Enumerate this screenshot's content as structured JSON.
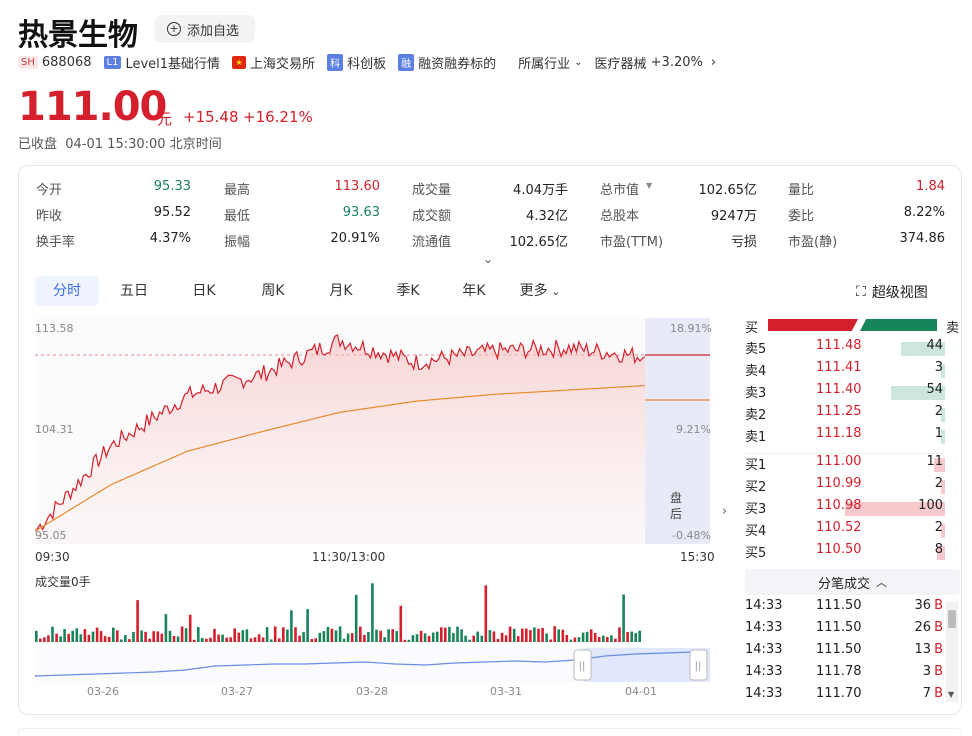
{
  "stock": {
    "name": "热景生物",
    "watch_label": "添加自选",
    "exchange_badge": "SH",
    "code": "688068",
    "level_badge": "L1",
    "level_label": "Level1基础行情",
    "exchange_label": "上海交易所",
    "star_badge": "科",
    "star_label": "科创板",
    "margin_badge": "融",
    "margin_label": "融资融券标的",
    "industry_label": "所属行业",
    "industry_name": "医疗器械",
    "industry_change": "+3.20%",
    "price": "111.00",
    "unit": "元",
    "change": "+15.48",
    "change_pct": "+16.21%",
    "status": "已收盘  04-01 15:30:00 北京时间"
  },
  "stats": [
    [
      {
        "label": "今开",
        "value": "95.33",
        "color": "green"
      },
      {
        "label": "最高",
        "value": "113.60",
        "color": "red"
      },
      {
        "label": "成交量",
        "value": "4.04万手",
        "color": ""
      },
      {
        "label": "总市值",
        "value": "102.65亿",
        "color": ""
      },
      {
        "label": "量比",
        "value": "1.84",
        "color": "red"
      }
    ],
    [
      {
        "label": "昨收",
        "value": "95.52",
        "color": ""
      },
      {
        "label": "最低",
        "value": "93.63",
        "color": "green"
      },
      {
        "label": "成交额",
        "value": "4.32亿",
        "color": ""
      },
      {
        "label": "总股本",
        "value": "9247万",
        "color": ""
      },
      {
        "label": "委比",
        "value": "8.22%",
        "color": ""
      }
    ],
    [
      {
        "label": "换手率",
        "value": "4.37%",
        "color": ""
      },
      {
        "label": "振幅",
        "value": "20.91%",
        "color": ""
      },
      {
        "label": "流通值",
        "value": "102.65亿",
        "color": ""
      },
      {
        "label": "市盈(TTM)",
        "value": "亏损",
        "color": ""
      },
      {
        "label": "市盈(静)",
        "value": "374.86",
        "color": ""
      }
    ]
  ],
  "tabs": [
    "分时",
    "五日",
    "日K",
    "周K",
    "月K",
    "季K",
    "年K",
    "更多"
  ],
  "super_view": "超级视图",
  "chart": {
    "y_left": [
      "113.58",
      "104.31",
      "95.05"
    ],
    "y_right": [
      "18.91%",
      "9.21%",
      "-0.48%"
    ],
    "x_labels": [
      "09:30",
      "11:30/13:00",
      "15:30"
    ],
    "after_hours": "盘后",
    "volume_label": "成交量0手",
    "nav_dates": [
      "03-26",
      "03-27",
      "03-28",
      "03-31",
      "04-01"
    ]
  },
  "chart_data": {
    "type": "line",
    "title": "",
    "ylim": [
      95.05,
      113.58
    ],
    "x": [
      "09:30",
      "10:00",
      "10:30",
      "11:00",
      "11:30/13:00",
      "13:30",
      "14:00",
      "14:30",
      "15:00"
    ],
    "series": [
      {
        "values": [
          95.3,
          103.0,
          107.5,
          109.5,
          112.5,
          110.5,
          111.5,
          111.8,
          111.0
        ]
      },
      {
        "values": [
          95.3,
          99.5,
          102.5,
          104.3,
          106.0,
          107.0,
          107.6,
          108.0,
          108.4
        ]
      }
    ]
  },
  "orderbook": {
    "buy_label": "买",
    "sell_label": "卖",
    "asks": [
      {
        "label": "卖5",
        "price": "111.48",
        "vol": "44"
      },
      {
        "label": "卖4",
        "price": "111.41",
        "vol": "3"
      },
      {
        "label": "卖3",
        "price": "111.40",
        "vol": "54"
      },
      {
        "label": "卖2",
        "price": "111.25",
        "vol": "2"
      },
      {
        "label": "卖1",
        "price": "111.18",
        "vol": "1"
      }
    ],
    "bids": [
      {
        "label": "买1",
        "price": "111.00",
        "vol": "11"
      },
      {
        "label": "买2",
        "price": "110.99",
        "vol": "2"
      },
      {
        "label": "买3",
        "price": "110.98",
        "vol": "100"
      },
      {
        "label": "买4",
        "price": "110.52",
        "vol": "2"
      },
      {
        "label": "买5",
        "price": "110.50",
        "vol": "8"
      }
    ],
    "ticks_label": "分笔成交",
    "ticks": [
      {
        "time": "14:33",
        "price": "111.50",
        "vol": "36",
        "side": "B"
      },
      {
        "time": "14:33",
        "price": "111.50",
        "vol": "26",
        "side": "B"
      },
      {
        "time": "14:33",
        "price": "111.50",
        "vol": "13",
        "side": "B"
      },
      {
        "time": "14:33",
        "price": "111.78",
        "vol": "3",
        "side": "B"
      },
      {
        "time": "14:33",
        "price": "111.70",
        "vol": "7",
        "side": "B"
      }
    ]
  },
  "colors": {
    "up": "#d4202c",
    "down": "#17845a",
    "accent": "#3b6fe0",
    "avg": "#e98a2c"
  }
}
